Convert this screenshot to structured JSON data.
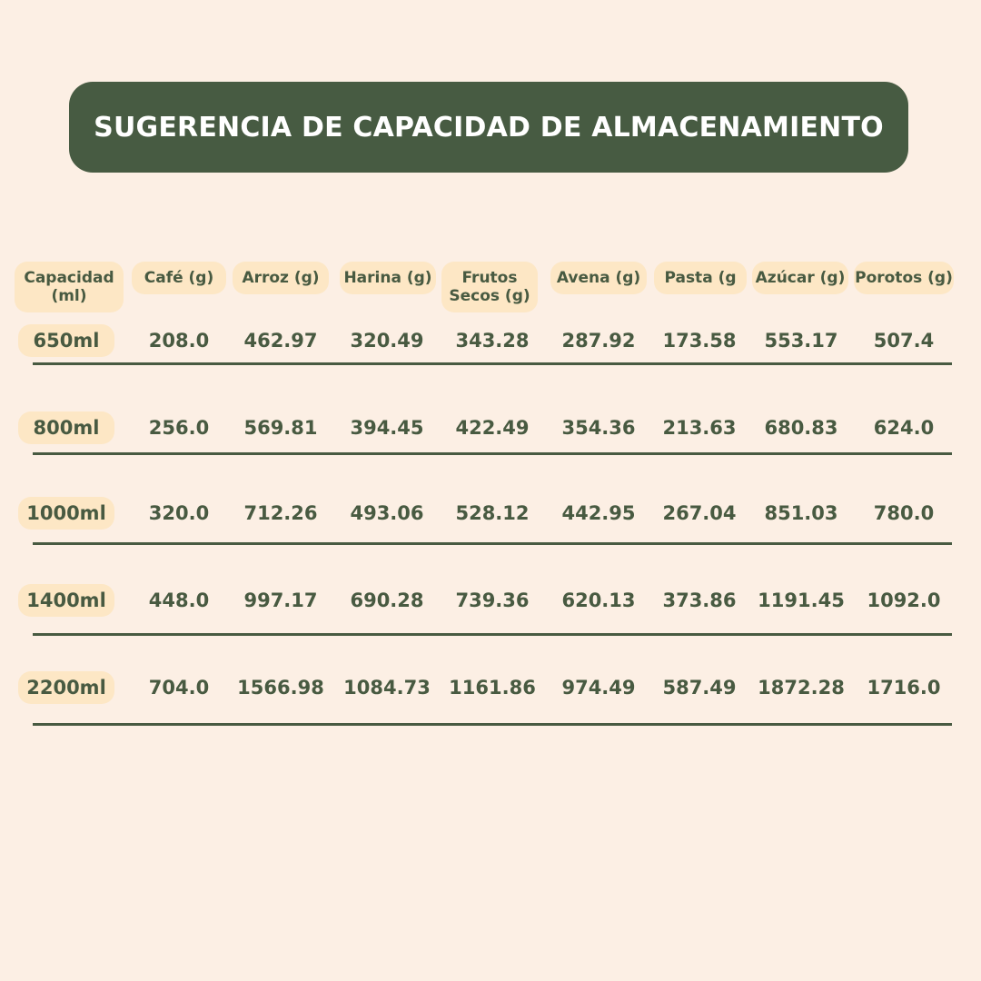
{
  "title": "SUGERENCIA DE CAPACIDAD DE ALMACENAMIENTO",
  "table": {
    "headers": [
      "Capacidad\n(ml)",
      "Café (g)",
      "Arroz (g)",
      "Harina (g)",
      "Frutos\nSecos (g)",
      "Avena (g)",
      "Pasta (g",
      "Azúcar (g)",
      "Porotos (g)"
    ],
    "rows": [
      {
        "capacity": "650ml",
        "values": [
          "208.0",
          "462.97",
          "320.49",
          "343.28",
          "287.92",
          "173.58",
          "553.17",
          "507.4"
        ]
      },
      {
        "capacity": "800ml",
        "values": [
          "256.0",
          "569.81",
          "394.45",
          "422.49",
          "354.36",
          "213.63",
          "680.83",
          "624.0"
        ]
      },
      {
        "capacity": "1000ml",
        "values": [
          "320.0",
          "712.26",
          "493.06",
          "528.12",
          "442.95",
          "267.04",
          "851.03",
          "780.0"
        ]
      },
      {
        "capacity": "1400ml",
        "values": [
          "448.0",
          "997.17",
          "690.28",
          "739.36",
          "620.13",
          "373.86",
          "1191.45",
          "1092.0"
        ]
      },
      {
        "capacity": "2200ml",
        "values": [
          "704.0",
          "1566.98",
          "1084.73",
          "1161.86",
          "974.49",
          "587.49",
          "1872.28",
          "1716.0"
        ]
      }
    ]
  },
  "colors": {
    "background": "#fcefe4",
    "banner": "#475b42",
    "pill": "#fde7c5",
    "text": "#485a41"
  }
}
